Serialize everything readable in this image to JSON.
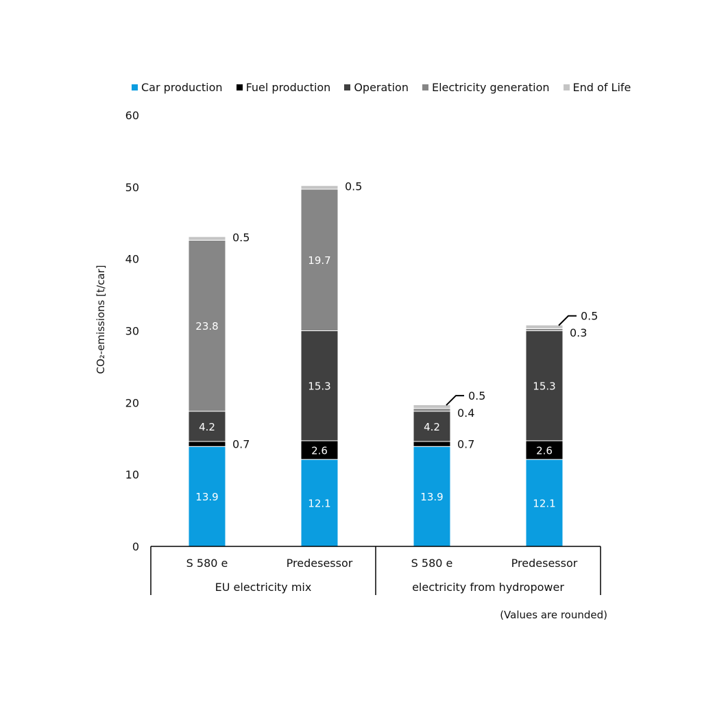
{
  "chart_data": {
    "type": "bar",
    "stacked": true,
    "categories": [
      "S 580 e",
      "Predesessor",
      "S 580 e",
      "Predesessor"
    ],
    "groups": [
      {
        "label": "EU electricity mix",
        "categories": [
          0,
          1
        ]
      },
      {
        "label": "electricity from hydropower",
        "categories": [
          2,
          3
        ]
      }
    ],
    "series": [
      {
        "name": "Car production",
        "color": "#0b9de0",
        "values": [
          13.9,
          12.1,
          13.9,
          12.1
        ]
      },
      {
        "name": "Fuel production",
        "color": "#000000",
        "values": [
          0.7,
          2.6,
          0.7,
          2.6
        ]
      },
      {
        "name": "Operation",
        "color": "#404040",
        "values": [
          4.2,
          15.3,
          4.2,
          15.3
        ]
      },
      {
        "name": "Electricity generation",
        "color": "#868686",
        "values": [
          23.8,
          19.7,
          0.4,
          0.3
        ]
      },
      {
        "name": "End of Life",
        "color": "#c4c4c4",
        "values": [
          0.5,
          0.5,
          0.5,
          0.5
        ]
      }
    ],
    "data_labels": [
      [
        "13.9",
        "0.7",
        "4.2",
        "23.8",
        "0.5"
      ],
      [
        "12.1",
        "2.6",
        "15.3",
        "19.7",
        "0.5"
      ],
      [
        "13.9",
        "0.7",
        "4.2",
        "0.4",
        "0.5"
      ],
      [
        "12.1",
        "2.6",
        "15.3",
        "0.3",
        "0.5"
      ]
    ],
    "ylabel": "CO₂-emissions [t/car]",
    "xlabel": "",
    "ylim": [
      0,
      60
    ],
    "yticks": [
      0,
      10,
      20,
      30,
      40,
      50,
      60
    ],
    "legend_position": "top",
    "grid": false,
    "note": "(Values are rounded)"
  }
}
